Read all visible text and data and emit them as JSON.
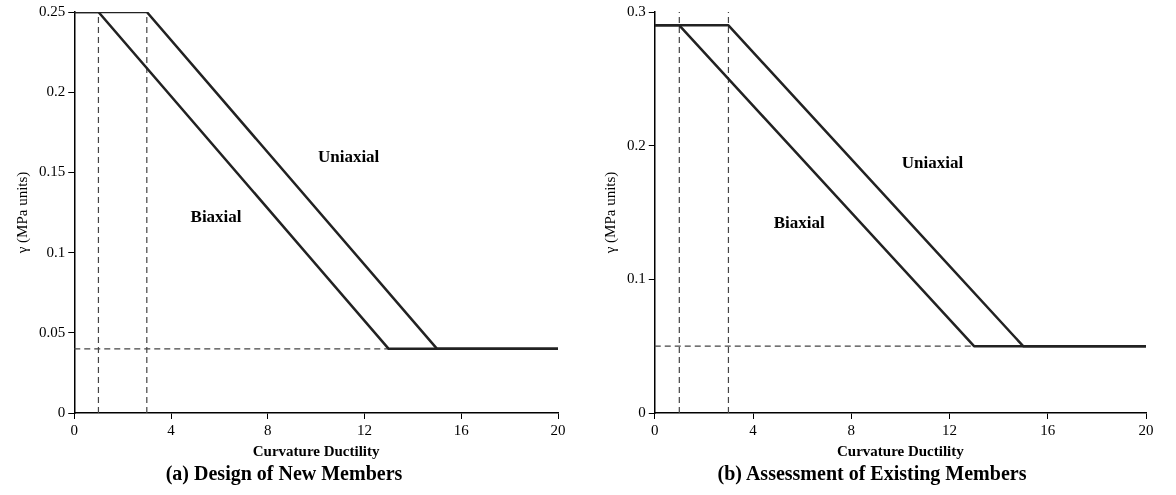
{
  "chart_data": [
    {
      "type": "line",
      "title": "(a) Design of New Members",
      "xlabel": "Curvature Ductility",
      "ylabel": "γ (MPa units)",
      "xlim": [
        0,
        20
      ],
      "xticks": [
        0,
        4,
        8,
        12,
        16,
        20
      ],
      "ylim": [
        0,
        0.25
      ],
      "yticks": [
        0,
        0.05,
        0.1,
        0.15,
        0.2,
        0.25
      ],
      "grid": false,
      "legend": false,
      "marker": "none",
      "series": [
        {
          "name": "Uniaxial",
          "color": "#222222",
          "x": [
            0,
            3,
            15,
            20
          ],
          "values": [
            0.25,
            0.25,
            0.04,
            0.04
          ]
        },
        {
          "name": "Biaxial",
          "color": "#222222",
          "x": [
            0,
            1,
            13,
            20
          ],
          "values": [
            0.25,
            0.25,
            0.04,
            0.04
          ]
        }
      ],
      "ref_lines": [
        {
          "axis": "x",
          "value": 1,
          "color": "#444444",
          "line_style": "dashed"
        },
        {
          "axis": "x",
          "value": 3,
          "color": "#444444",
          "line_style": "dashed"
        },
        {
          "axis": "y",
          "value": 0.04,
          "color": "#444444",
          "line_style": "dashed"
        }
      ]
    },
    {
      "type": "line",
      "title": "(b) Assessment of Existing Members",
      "xlabel": "Curvature Ductility",
      "ylabel": "γ (MPa units)",
      "xlim": [
        0,
        20
      ],
      "xticks": [
        0,
        4,
        8,
        12,
        16,
        20
      ],
      "ylim": [
        0,
        0.3
      ],
      "yticks": [
        0,
        0.1,
        0.2,
        0.3
      ],
      "grid": false,
      "legend": false,
      "marker": "none",
      "series": [
        {
          "name": "Uniaxial",
          "color": "#222222",
          "x": [
            0,
            3,
            15,
            20
          ],
          "values": [
            0.29,
            0.29,
            0.05,
            0.05
          ]
        },
        {
          "name": "Biaxial",
          "color": "#222222",
          "x": [
            0,
            1,
            13,
            20
          ],
          "values": [
            0.29,
            0.29,
            0.05,
            0.05
          ]
        }
      ],
      "ref_lines": [
        {
          "axis": "x",
          "value": 1,
          "color": "#444444",
          "line_style": "dashed"
        },
        {
          "axis": "x",
          "value": 3,
          "color": "#444444",
          "line_style": "dashed"
        },
        {
          "axis": "y",
          "value": 0.05,
          "color": "#444444",
          "line_style": "dashed"
        }
      ]
    }
  ]
}
